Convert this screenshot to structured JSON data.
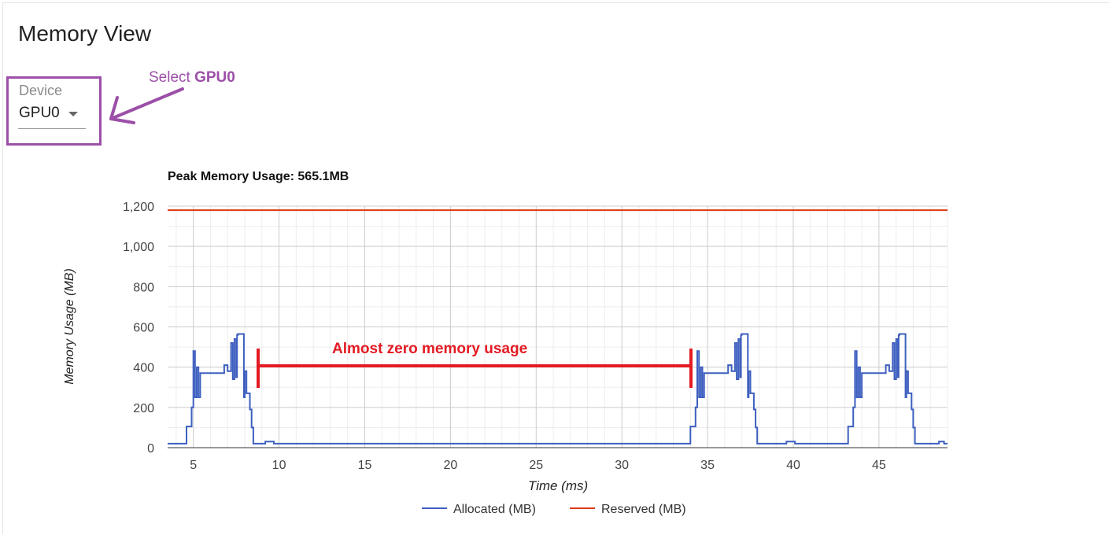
{
  "page": {
    "title": "Memory View"
  },
  "device": {
    "label": "Device",
    "value": "GPU0"
  },
  "annotations": {
    "select_prefix": "Select ",
    "select_bold": "GPU0",
    "zero_usage": "Almost zero memory usage",
    "color_purple": "#9c4fa8",
    "color_red": "#e31b23"
  },
  "chart_data": {
    "type": "line",
    "title": "Peak Memory Usage: 565.1MB",
    "xlabel": "Time (ms)",
    "ylabel": "Memory Usage (MB)",
    "xlim": [
      3.5,
      49
    ],
    "ylim": [
      0,
      1200
    ],
    "xticks": [
      5,
      10,
      15,
      20,
      25,
      30,
      35,
      40,
      45
    ],
    "yticks": [
      0,
      200,
      400,
      600,
      800,
      1000,
      1200
    ],
    "ytick_labels": [
      "0",
      "200",
      "400",
      "600",
      "800",
      "1,000",
      "1,200"
    ],
    "grid": true,
    "legend_position": "bottom",
    "series": [
      {
        "name": "Allocated (MB)",
        "color": "#3d5fbf",
        "x": [
          3.5,
          4.6,
          4.6,
          4.9,
          4.9,
          5.0,
          5.0,
          5.1,
          5.1,
          5.2,
          5.2,
          5.3,
          5.3,
          5.4,
          5.4,
          6.8,
          6.8,
          7.0,
          7.0,
          7.2,
          7.2,
          7.3,
          7.3,
          7.4,
          7.4,
          7.5,
          7.5,
          7.55,
          7.55,
          7.6,
          7.6,
          7.95,
          7.95,
          8.0,
          8.0,
          8.1,
          8.1,
          8.3,
          8.3,
          8.4,
          8.4,
          8.5,
          8.5,
          9.2,
          9.2,
          9.7,
          9.7,
          34.0,
          34.0,
          34.3,
          34.3,
          34.4,
          34.4,
          34.5,
          34.5,
          34.6,
          34.6,
          34.7,
          34.7,
          34.8,
          34.8,
          36.2,
          36.2,
          36.4,
          36.4,
          36.6,
          36.6,
          36.7,
          36.7,
          36.8,
          36.8,
          36.9,
          36.9,
          36.95,
          36.95,
          37.0,
          37.0,
          37.35,
          37.35,
          37.4,
          37.4,
          37.5,
          37.5,
          37.7,
          37.7,
          37.8,
          37.8,
          37.9,
          37.9,
          39.6,
          39.6,
          40.1,
          40.1,
          43.2,
          43.2,
          43.5,
          43.5,
          43.6,
          43.6,
          43.7,
          43.7,
          43.8,
          43.8,
          43.9,
          43.9,
          44.0,
          44.0,
          45.4,
          45.4,
          45.6,
          45.6,
          45.8,
          45.8,
          45.9,
          45.9,
          46.0,
          46.0,
          46.1,
          46.1,
          46.15,
          46.15,
          46.2,
          46.2,
          46.55,
          46.55,
          46.6,
          46.6,
          46.7,
          46.7,
          46.9,
          46.9,
          47.0,
          47.0,
          47.1,
          47.1,
          48.5,
          48.5,
          48.8,
          48.8,
          49.0
        ],
        "y": [
          20,
          20,
          105,
          105,
          200,
          200,
          480,
          480,
          250,
          250,
          400,
          400,
          250,
          250,
          370,
          370,
          410,
          410,
          380,
          380,
          520,
          520,
          340,
          340,
          540,
          540,
          350,
          350,
          560,
          560,
          565,
          565,
          250,
          250,
          380,
          380,
          270,
          270,
          190,
          190,
          100,
          100,
          20,
          20,
          30,
          30,
          20,
          20,
          105,
          105,
          200,
          200,
          480,
          480,
          250,
          250,
          400,
          400,
          250,
          250,
          370,
          370,
          410,
          410,
          380,
          380,
          520,
          520,
          340,
          340,
          540,
          540,
          350,
          350,
          560,
          560,
          565,
          565,
          250,
          250,
          380,
          380,
          270,
          270,
          190,
          190,
          100,
          100,
          20,
          20,
          30,
          30,
          20,
          20,
          105,
          105,
          200,
          200,
          480,
          480,
          250,
          250,
          400,
          400,
          250,
          250,
          370,
          370,
          410,
          410,
          380,
          380,
          520,
          520,
          340,
          340,
          540,
          540,
          350,
          350,
          560,
          560,
          565,
          565,
          250,
          250,
          380,
          380,
          270,
          270,
          190,
          190,
          100,
          100,
          20,
          20,
          30,
          30,
          20,
          20
        ]
      },
      {
        "name": "Reserved (MB)",
        "color": "#dc3912",
        "x": [
          3.5,
          49
        ],
        "y": [
          1180,
          1180
        ]
      }
    ]
  }
}
